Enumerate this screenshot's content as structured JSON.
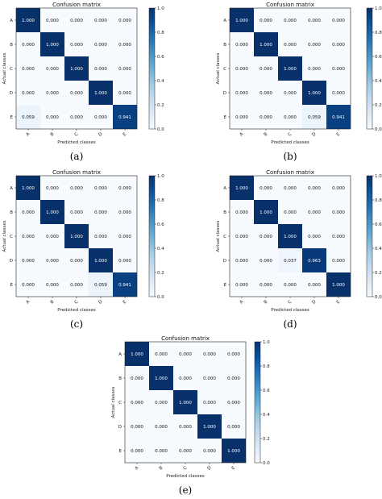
{
  "chart_data": [
    {
      "panel": "(a)",
      "type": "heatmap",
      "title": "Confusion matrix",
      "xlabel": "Predicted classes",
      "ylabel": "Actual classes",
      "classes": [
        "A",
        "B",
        "C",
        "D",
        "E"
      ],
      "values": [
        [
          "1.000",
          "0.000",
          "0.000",
          "0.000",
          "0.000"
        ],
        [
          "0.000",
          "1.000",
          "0.000",
          "0.000",
          "0.000"
        ],
        [
          "0.000",
          "0.000",
          "1.000",
          "0.000",
          "0.000"
        ],
        [
          "0.000",
          "0.000",
          "0.000",
          "1.000",
          "0.000"
        ],
        [
          "0.059",
          "0.000",
          "0.000",
          "0.000",
          "0.941"
        ]
      ],
      "colorbar_ticks": [
        "0.0",
        "0.2",
        "0.4",
        "0.6",
        "0.8",
        "1.0"
      ],
      "colormap": [
        "#f7fbff",
        "#08306b"
      ]
    },
    {
      "panel": "(b)",
      "type": "heatmap",
      "title": "Confusion matrix",
      "xlabel": "Predicted classes",
      "ylabel": "Actual classes",
      "classes": [
        "A",
        "B",
        "C",
        "D",
        "E"
      ],
      "values": [
        [
          "1.000",
          "0.000",
          "0.000",
          "0.000",
          "0.000"
        ],
        [
          "0.000",
          "1.000",
          "0.000",
          "0.000",
          "0.000"
        ],
        [
          "0.000",
          "0.000",
          "1.000",
          "0.000",
          "0.000"
        ],
        [
          "0.000",
          "0.000",
          "0.000",
          "1.000",
          "0.000"
        ],
        [
          "0.000",
          "0.000",
          "0.000",
          "0.059",
          "0.941"
        ]
      ],
      "colorbar_ticks": [
        "0.0",
        "0.2",
        "0.4",
        "0.6",
        "0.8",
        "1.0"
      ],
      "colormap": [
        "#f7fbff",
        "#08306b"
      ]
    },
    {
      "panel": "(c)",
      "type": "heatmap",
      "title": "Confusion matrix",
      "xlabel": "Predicted classes",
      "ylabel": "Actual classes",
      "classes": [
        "A",
        "B",
        "C",
        "D",
        "E"
      ],
      "values": [
        [
          "1.000",
          "0.000",
          "0.000",
          "0.000",
          "0.000"
        ],
        [
          "0.000",
          "1.000",
          "0.000",
          "0.000",
          "0.000"
        ],
        [
          "0.000",
          "0.000",
          "1.000",
          "0.000",
          "0.000"
        ],
        [
          "0.000",
          "0.000",
          "0.000",
          "1.000",
          "0.000"
        ],
        [
          "0.000",
          "0.000",
          "0.000",
          "0.059",
          "0.941"
        ]
      ],
      "colorbar_ticks": [
        "0.0",
        "0.2",
        "0.4",
        "0.6",
        "0.8",
        "1.0"
      ],
      "colormap": [
        "#f7fbff",
        "#08306b"
      ]
    },
    {
      "panel": "(d)",
      "type": "heatmap",
      "title": "Confusion matrix",
      "xlabel": "Predicted classes",
      "ylabel": "Actual classes",
      "classes": [
        "A",
        "B",
        "C",
        "D",
        "E"
      ],
      "values": [
        [
          "1.000",
          "0.000",
          "0.000",
          "0.000",
          "0.000"
        ],
        [
          "0.000",
          "1.000",
          "0.000",
          "0.000",
          "0.000"
        ],
        [
          "0.000",
          "0.000",
          "1.000",
          "0.000",
          "0.000"
        ],
        [
          "0.000",
          "0.000",
          "0.037",
          "0.963",
          "0.000"
        ],
        [
          "0.000",
          "0.000",
          "0.000",
          "0.000",
          "1.000"
        ]
      ],
      "colorbar_ticks": [
        "0.0",
        "0.2",
        "0.4",
        "0.6",
        "0.8",
        "1.0"
      ],
      "colormap": [
        "#f7fbff",
        "#08306b"
      ]
    },
    {
      "panel": "(e)",
      "type": "heatmap",
      "title": "Confusion matrix",
      "xlabel": "Predicted classes",
      "ylabel": "Actual classes",
      "classes": [
        "A",
        "B",
        "C",
        "D",
        "E"
      ],
      "values": [
        [
          "1.000",
          "0.000",
          "0.000",
          "0.000",
          "0.000"
        ],
        [
          "0.000",
          "1.000",
          "0.000",
          "0.000",
          "0.000"
        ],
        [
          "0.000",
          "0.000",
          "1.000",
          "0.000",
          "0.000"
        ],
        [
          "0.000",
          "0.000",
          "0.000",
          "1.000",
          "0.000"
        ],
        [
          "0.000",
          "0.000",
          "0.000",
          "0.000",
          "1.000"
        ]
      ],
      "colorbar_ticks": [
        "0.0",
        "0.2",
        "0.4",
        "0.6",
        "0.8",
        "1.0"
      ],
      "colormap": [
        "#f7fbff",
        "#08306b"
      ]
    }
  ]
}
